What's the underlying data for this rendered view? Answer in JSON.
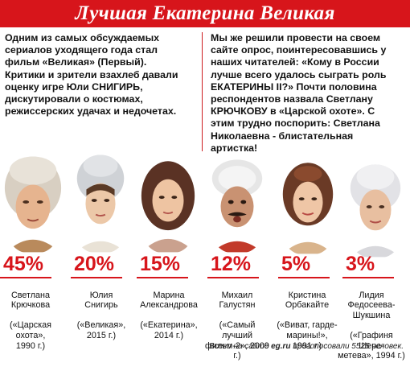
{
  "header": {
    "title": "Лучшая Екатерина Великая"
  },
  "intro": {
    "left": "    Одним из самых обсуждаемых\nсериалов уходящего года стал\nфильм «Великая» (Первый).\nКритики и зрители взахлеб давали\nоценку игре Юли СНИГИРЬ,\nдискутировали о костюмах,\nрежиссерских удачах и недочетах.",
    "right": "    Мы же решили провести на своем\nсайте опрос, поинтересовавшись у\nнаших читателей: «Кому в России\nлучше всего удалось сыграть роль\nЕКАТЕРИНЫ II?» Почти половина\nреспондентов назвала Светлану\nКРЮЧКОВУ в «Царской охоте». С\nэтим трудно поспорить: Светлана\nНиколаевна - блистательная\nартистка!"
  },
  "results": [
    {
      "percent": "45%",
      "share": 45,
      "name": "Светлана\nКрючкова",
      "work": "(«Царская\nохота»,\n1990 г.)",
      "portrait": "svetlana-kryuchkova-photo"
    },
    {
      "percent": "20%",
      "share": 20,
      "name": "Юлия\nСнигирь",
      "work": "(«Великая»,\n2015 г.)",
      "portrait": "yulia-snigir-photo"
    },
    {
      "percent": "15%",
      "share": 15,
      "name": "Марина\nАлександрова",
      "work": "(«Екатерина»,\n2014 г.)",
      "portrait": "marina-alexandrova-photo"
    },
    {
      "percent": "12%",
      "share": 12,
      "name": "Михаил\nГалустян",
      "work": "(«Самый\nлучший\nфильм-2», 2009 г.)",
      "portrait": "mikhail-galustyan-photo"
    },
    {
      "percent": "5%",
      "share": 5,
      "name": "Кристина\nОрбакайте",
      "work": "(«Виват, гарде-\nмарины!»,\n1991 г.)",
      "portrait": "kristina-orbakaite-photo"
    },
    {
      "percent": "3%",
      "share": 3,
      "name": "Лидия\nФедосеева-\nШукшина",
      "work": "(«Графиня Шере-\nметева», 1994 г.)",
      "portrait": "lidia-fedoseeva-photo"
    }
  ],
  "footer": {
    "prefix": "Всего на сайте ",
    "site": "eg.ru",
    "suffix": " проголосовали 5525 человек."
  },
  "colors": {
    "accent": "#d7151b",
    "text": "#111111"
  }
}
